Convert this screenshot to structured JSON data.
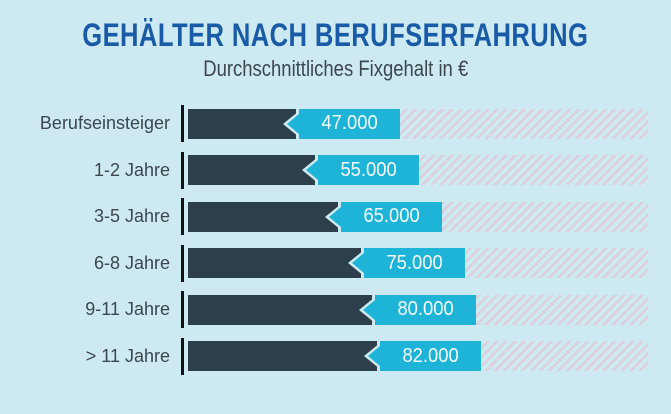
{
  "title": "GEHÄLTER NACH BERUFSERFAHRUNG",
  "subtitle": "Durchschnittliches Fixgehalt in €",
  "colors": {
    "background": "#cdeaf2",
    "title": "#1a5ba8",
    "text": "#3c474f",
    "bar": "#2c3f4a",
    "accent": "#1db4d8",
    "value_text": "#f4fbfd",
    "hatch_stripe": "#dbcfdb",
    "axis_tick": "#121212"
  },
  "chart_data": {
    "type": "bar",
    "orientation": "horizontal",
    "title": "GEHÄLTER NACH BERUFSERFAHRUNG",
    "subtitle": "Durchschnittliches Fixgehalt in €",
    "categories": [
      "Berufseinsteiger",
      "1-2 Jahre",
      "3-5 Jahre",
      "6-8 Jahre",
      "9-11 Jahre",
      "> 11 Jahre"
    ],
    "values": [
      47000,
      55000,
      65000,
      75000,
      80000,
      82000
    ],
    "value_labels": [
      "47.000",
      "55.000",
      "65.000",
      "75.000",
      "80.000",
      "82.000"
    ],
    "unit": "€",
    "xlim": [
      0,
      200000
    ],
    "grid": false,
    "legend": false,
    "track_style": "diagonal-hatch",
    "value_label_style": "arrow-tag"
  }
}
